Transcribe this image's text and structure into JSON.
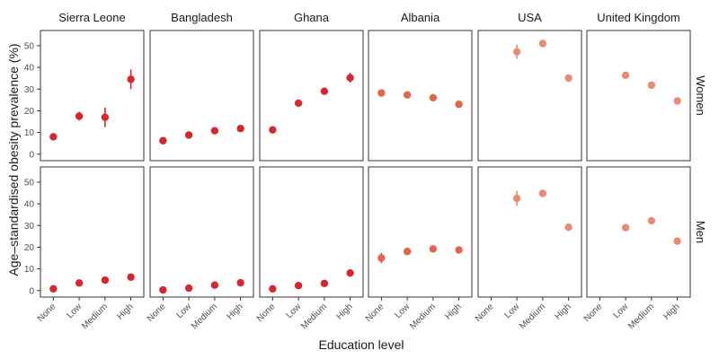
{
  "chart_data": {
    "type": "scatter",
    "title": "",
    "xlabel": "Education level",
    "ylabel": "Age–standardised obesity prevalence (%)",
    "ylim": [
      -3,
      57
    ],
    "yticks": [
      0,
      10,
      20,
      30,
      40,
      50
    ],
    "categories": [
      "None",
      "Low",
      "Medium",
      "High"
    ],
    "countries": [
      "Sierra Leone",
      "Bangladesh",
      "Ghana",
      "Albania",
      "USA",
      "United Kingdom"
    ],
    "rows": [
      "Women",
      "Men"
    ],
    "colors": {
      "low_income": "#d7262d",
      "middle_income": "#e2644f",
      "high_income": "#e88b75"
    },
    "country_colors": [
      "#d7262d",
      "#d7262d",
      "#d7262d",
      "#e2644f",
      "#e88b75",
      "#e88b75"
    ],
    "series": [
      {
        "name": "Women",
        "countries": [
          {
            "values": [
              8,
              17.5,
              17,
              34.5
            ],
            "lower": [
              7,
              15.5,
              12.5,
              30
            ],
            "upper": [
              9,
              19.5,
              21.5,
              39
            ]
          },
          {
            "values": [
              6.2,
              8.8,
              10.8,
              11.8
            ],
            "lower": [
              5.5,
              8,
              10,
              11
            ],
            "upper": [
              7,
              9.6,
              11.6,
              12.6
            ]
          },
          {
            "values": [
              11.2,
              23.5,
              29,
              35.2
            ],
            "lower": [
              10.4,
              22.5,
              28,
              33
            ],
            "upper": [
              12,
              24.5,
              30,
              37.5
            ]
          },
          {
            "values": [
              28.2,
              27.3,
              26,
              23
            ],
            "lower": [
              27,
              26.3,
              25,
              22
            ],
            "upper": [
              29.5,
              28.3,
              27,
              24
            ]
          },
          {
            "values": [
              null,
              47.2,
              51,
              35.1
            ],
            "lower": [
              null,
              44,
              49.8,
              34
            ],
            "upper": [
              null,
              50.5,
              52.2,
              36.2
            ]
          },
          {
            "values": [
              null,
              36.4,
              31.8,
              24.5
            ],
            "lower": [
              null,
              35.7,
              31,
              23.8
            ],
            "upper": [
              null,
              37.1,
              32.6,
              25.2
            ]
          }
        ]
      },
      {
        "name": "Men",
        "countries": [
          {
            "values": [
              0.8,
              3.5,
              4.8,
              6.2
            ],
            "lower": [
              0.3,
              2.8,
              4,
              5.2
            ],
            "upper": [
              1.3,
              4.2,
              5.6,
              7.2
            ]
          },
          {
            "values": [
              0.3,
              1.1,
              2.5,
              3.6
            ],
            "lower": [
              0,
              0.6,
              1.8,
              2.8
            ],
            "upper": [
              0.6,
              1.6,
              3.2,
              4.4
            ]
          },
          {
            "values": [
              0.8,
              2.3,
              3.3,
              8.1
            ],
            "lower": [
              0.4,
              1.8,
              2.6,
              7.2
            ],
            "upper": [
              1.2,
              2.8,
              4,
              9
            ]
          },
          {
            "values": [
              15,
              18,
              19.2,
              18.7
            ],
            "lower": [
              12.5,
              17,
              18.2,
              17.7
            ],
            "upper": [
              17.5,
              19,
              20.2,
              19.7
            ]
          },
          {
            "values": [
              null,
              42.5,
              44.8,
              29.2
            ],
            "lower": [
              null,
              39,
              43.6,
              28.2
            ],
            "upper": [
              null,
              46,
              46,
              30.2
            ]
          },
          {
            "values": [
              null,
              29,
              32.2,
              22.8
            ],
            "lower": [
              null,
              28.2,
              31.4,
              22
            ],
            "upper": [
              null,
              29.8,
              33,
              23.6
            ]
          }
        ]
      }
    ]
  }
}
